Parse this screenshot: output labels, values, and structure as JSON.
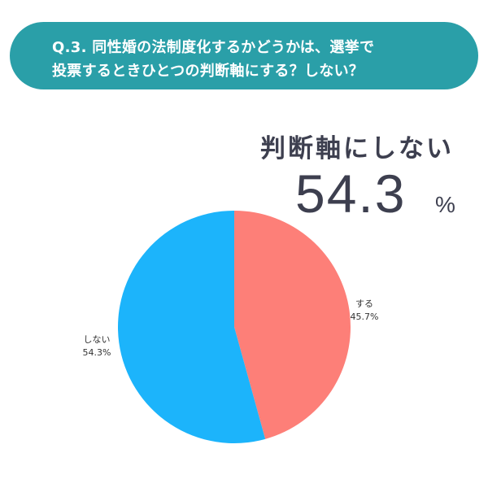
{
  "question": {
    "line1": "Q.3. 同性婚の法制度化するかどうかは、選挙で",
    "line2": "投票するときひとつの判断軸にする？しない？"
  },
  "highlight": {
    "label": "判断軸にしない",
    "value": "54.3",
    "unit": "%"
  },
  "colors": {
    "banner": "#2a9fa8",
    "suru": "#fd7f78",
    "shinai": "#1cb4fb",
    "text_dark": "#3d3f4f"
  },
  "labels": {
    "suru": {
      "name": "する",
      "pct": "45.7%"
    },
    "shinai": {
      "name": "しない",
      "pct": "54.3%"
    }
  },
  "chart_data": {
    "type": "pie",
    "title": "Q.3. 同性婚の法制度化するかどうかは、選挙で投票するときひとつの判断軸にする？しない？",
    "categories": [
      "する",
      "しない"
    ],
    "values": [
      45.7,
      54.3
    ],
    "colors": [
      "#fd7f78",
      "#1cb4fb"
    ],
    "start_angle": "12 o'clock, clockwise",
    "annotation": "判断軸にしない 54.3 %"
  }
}
